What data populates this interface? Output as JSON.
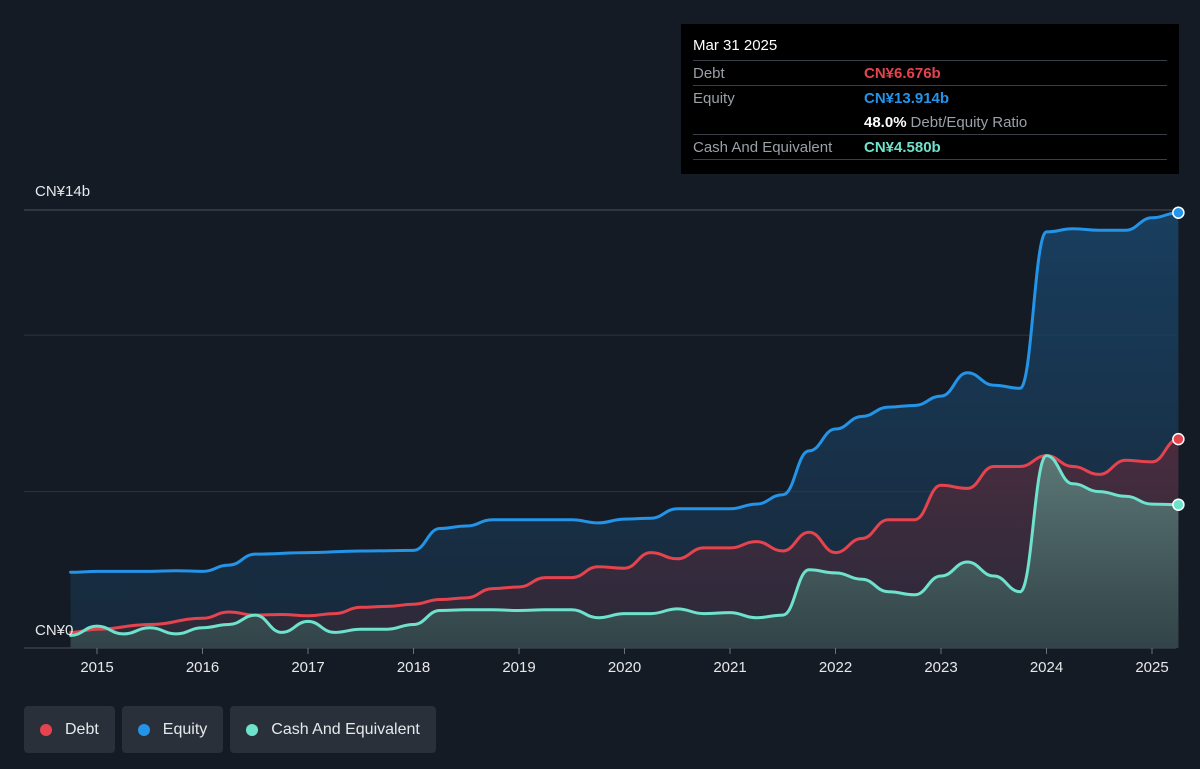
{
  "tooltip": {
    "date": "Mar 31 2025",
    "debt_label": "Debt",
    "debt_value": "CN¥6.676b",
    "equity_label": "Equity",
    "equity_value": "CN¥13.914b",
    "ratio_value": "48.0%",
    "ratio_label": "Debt/Equity Ratio",
    "cash_label": "Cash And Equivalent",
    "cash_value": "CN¥4.580b"
  },
  "axis": {
    "y_top_label": "CN¥14b",
    "y_bottom_label": "CN¥0"
  },
  "legend": [
    {
      "label": "Debt",
      "color": "#e5434e"
    },
    {
      "label": "Equity",
      "color": "#2394e8"
    },
    {
      "label": "Cash And Equivalent",
      "color": "#6ee2cc"
    }
  ],
  "colors": {
    "background": "#151b24",
    "debt": "#e5434e",
    "equity": "#2394e8",
    "cash": "#6ee2cc"
  },
  "chart_data": {
    "type": "area",
    "ylim": [
      0,
      14
    ],
    "y_unit": "CN¥b",
    "x_ticks": [
      "2015",
      "2016",
      "2017",
      "2018",
      "2019",
      "2020",
      "2021",
      "2022",
      "2023",
      "2024",
      "2025"
    ],
    "grid": true,
    "legend_position": "bottom-left",
    "series": [
      {
        "name": "Debt",
        "points": [
          [
            2014.75,
            0.5
          ],
          [
            2015.0,
            0.6
          ],
          [
            2015.5,
            0.75
          ],
          [
            2016.0,
            0.95
          ],
          [
            2016.25,
            1.15
          ],
          [
            2016.5,
            1.05
          ],
          [
            2016.75,
            1.07
          ],
          [
            2017.0,
            1.03
          ],
          [
            2017.25,
            1.1
          ],
          [
            2017.5,
            1.3
          ],
          [
            2017.75,
            1.33
          ],
          [
            2018.0,
            1.4
          ],
          [
            2018.25,
            1.55
          ],
          [
            2018.5,
            1.6
          ],
          [
            2018.75,
            1.9
          ],
          [
            2019.0,
            1.95
          ],
          [
            2019.25,
            2.25
          ],
          [
            2019.5,
            2.25
          ],
          [
            2019.75,
            2.6
          ],
          [
            2020.0,
            2.55
          ],
          [
            2020.25,
            3.05
          ],
          [
            2020.5,
            2.85
          ],
          [
            2020.75,
            3.2
          ],
          [
            2021.0,
            3.2
          ],
          [
            2021.25,
            3.4
          ],
          [
            2021.5,
            3.1
          ],
          [
            2021.75,
            3.7
          ],
          [
            2022.0,
            3.05
          ],
          [
            2022.25,
            3.5
          ],
          [
            2022.5,
            4.1
          ],
          [
            2022.75,
            4.1
          ],
          [
            2023.0,
            5.2
          ],
          [
            2023.25,
            5.1
          ],
          [
            2023.5,
            5.8
          ],
          [
            2023.75,
            5.8
          ],
          [
            2024.0,
            6.15
          ],
          [
            2024.25,
            5.8
          ],
          [
            2024.5,
            5.55
          ],
          [
            2024.75,
            6.0
          ],
          [
            2025.0,
            5.95
          ],
          [
            2025.25,
            6.676
          ]
        ]
      },
      {
        "name": "Equity",
        "points": [
          [
            2014.75,
            2.42
          ],
          [
            2015.0,
            2.45
          ],
          [
            2015.5,
            2.45
          ],
          [
            2015.75,
            2.47
          ],
          [
            2016.0,
            2.45
          ],
          [
            2016.25,
            2.65
          ],
          [
            2016.5,
            3.0
          ],
          [
            2017.0,
            3.05
          ],
          [
            2017.5,
            3.1
          ],
          [
            2018.0,
            3.12
          ],
          [
            2018.25,
            3.82
          ],
          [
            2018.5,
            3.9
          ],
          [
            2018.75,
            4.1
          ],
          [
            2019.0,
            4.1
          ],
          [
            2019.5,
            4.1
          ],
          [
            2019.75,
            4.0
          ],
          [
            2020.0,
            4.12
          ],
          [
            2020.25,
            4.15
          ],
          [
            2020.5,
            4.45
          ],
          [
            2021.0,
            4.45
          ],
          [
            2021.25,
            4.6
          ],
          [
            2021.5,
            4.9
          ],
          [
            2021.75,
            6.3
          ],
          [
            2022.0,
            7.0
          ],
          [
            2022.25,
            7.4
          ],
          [
            2022.5,
            7.7
          ],
          [
            2022.75,
            7.75
          ],
          [
            2023.0,
            8.05
          ],
          [
            2023.25,
            8.8
          ],
          [
            2023.5,
            8.4
          ],
          [
            2023.75,
            8.3
          ],
          [
            2024.0,
            13.3
          ],
          [
            2024.25,
            13.4
          ],
          [
            2024.5,
            13.35
          ],
          [
            2024.75,
            13.35
          ],
          [
            2025.0,
            13.75
          ],
          [
            2025.25,
            13.914
          ]
        ]
      },
      {
        "name": "Cash And Equivalent",
        "points": [
          [
            2014.75,
            0.4
          ],
          [
            2015.0,
            0.7
          ],
          [
            2015.25,
            0.45
          ],
          [
            2015.5,
            0.65
          ],
          [
            2015.75,
            0.45
          ],
          [
            2016.0,
            0.65
          ],
          [
            2016.25,
            0.75
          ],
          [
            2016.5,
            1.05
          ],
          [
            2016.75,
            0.5
          ],
          [
            2017.0,
            0.85
          ],
          [
            2017.25,
            0.5
          ],
          [
            2017.5,
            0.6
          ],
          [
            2017.75,
            0.6
          ],
          [
            2018.0,
            0.75
          ],
          [
            2018.25,
            1.2
          ],
          [
            2018.5,
            1.22
          ],
          [
            2018.75,
            1.22
          ],
          [
            2019.0,
            1.2
          ],
          [
            2019.25,
            1.22
          ],
          [
            2019.5,
            1.22
          ],
          [
            2019.75,
            0.97
          ],
          [
            2020.0,
            1.1
          ],
          [
            2020.25,
            1.1
          ],
          [
            2020.5,
            1.25
          ],
          [
            2020.75,
            1.1
          ],
          [
            2021.0,
            1.13
          ],
          [
            2021.25,
            0.97
          ],
          [
            2021.5,
            1.05
          ],
          [
            2021.75,
            2.5
          ],
          [
            2022.0,
            2.4
          ],
          [
            2022.25,
            2.2
          ],
          [
            2022.5,
            1.8
          ],
          [
            2022.75,
            1.7
          ],
          [
            2023.0,
            2.3
          ],
          [
            2023.25,
            2.75
          ],
          [
            2023.5,
            2.3
          ],
          [
            2023.75,
            1.8
          ],
          [
            2024.0,
            6.15
          ],
          [
            2024.25,
            5.25
          ],
          [
            2024.5,
            5.0
          ],
          [
            2024.75,
            4.85
          ],
          [
            2025.0,
            4.6
          ],
          [
            2025.25,
            4.58
          ]
        ]
      }
    ]
  }
}
